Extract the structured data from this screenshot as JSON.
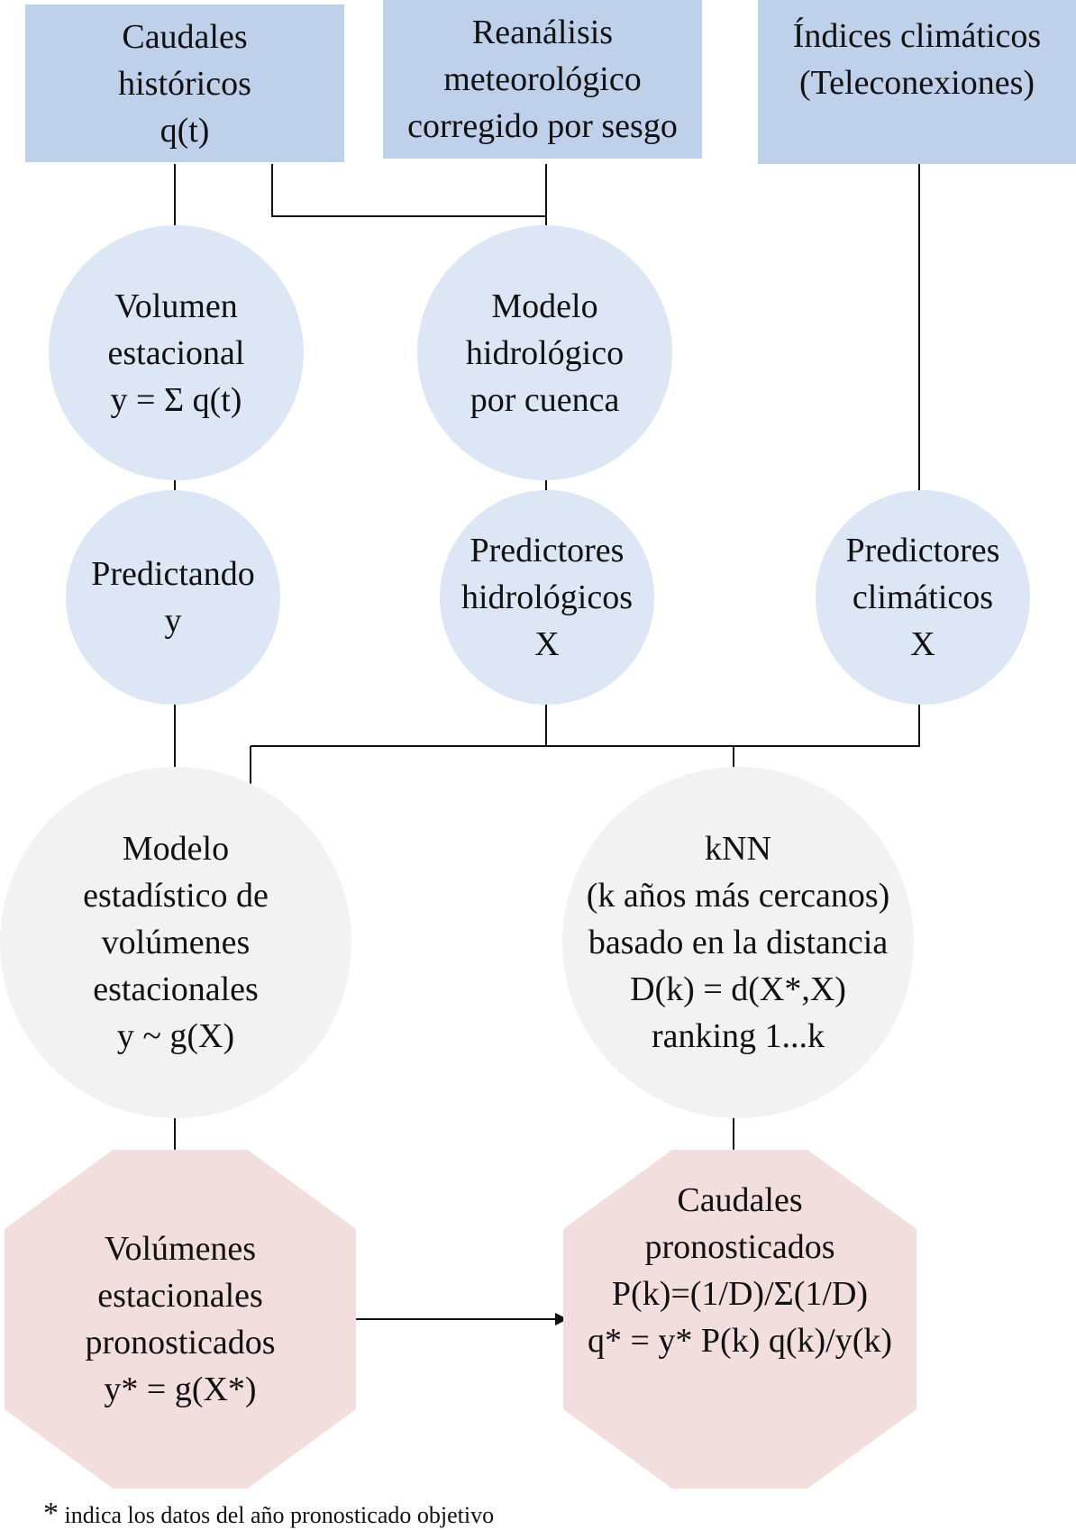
{
  "nodes": {
    "caudales_historicos": {
      "lines": [
        "Caudales",
        "históricos",
        "q(t)"
      ]
    },
    "reanalisis": {
      "lines": [
        "Reanálisis",
        "meteorológico",
        "corregido por sesgo"
      ]
    },
    "indices_climaticos": {
      "lines": [
        "Índices climáticos",
        "(Teleconexiones)"
      ]
    },
    "volumen_estacional": {
      "lines": [
        "Volumen",
        "estacional",
        "y = Σ q(t)"
      ]
    },
    "modelo_hidrologico": {
      "lines": [
        "Modelo",
        "hidrológico",
        "por cuenca"
      ]
    },
    "predictando": {
      "lines": [
        "Predictando",
        "y"
      ]
    },
    "predictores_hidrologicos": {
      "lines": [
        "Predictores",
        "hidrológicos",
        "X"
      ]
    },
    "predictores_climaticos": {
      "lines": [
        "Predictores",
        "climáticos",
        "X"
      ]
    },
    "modelo_estadistico": {
      "lines": [
        "Modelo",
        "estadístico de",
        "volúmenes",
        "estacionales",
        "y ~ g(X)"
      ]
    },
    "knn": {
      "lines": [
        "kNN",
        "(k años más cercanos)",
        "basado en la distancia",
        "D(k) = d(X*,X)",
        "ranking 1...k"
      ]
    },
    "volumenes_pronosticados": {
      "lines": [
        "Volúmenes",
        "estacionales",
        "pronosticados",
        "y* = g(X*)"
      ]
    },
    "caudales_pronosticados": {
      "lines": [
        "Caudales",
        "pronosticados",
        "P(k)=(1/D)/Σ(1/D)",
        "q* = y* P(k) q(k)/y(k)"
      ]
    }
  },
  "footnote": {
    "star": "*",
    "text": "indica los datos del año pronosticado objetivo"
  },
  "colors": {
    "input_box": "#bfd0ea",
    "process_circle": "#dce6f4",
    "model_circle": "#f2f2f2",
    "output_decagon": "#f3dede",
    "connector": "#111111"
  }
}
